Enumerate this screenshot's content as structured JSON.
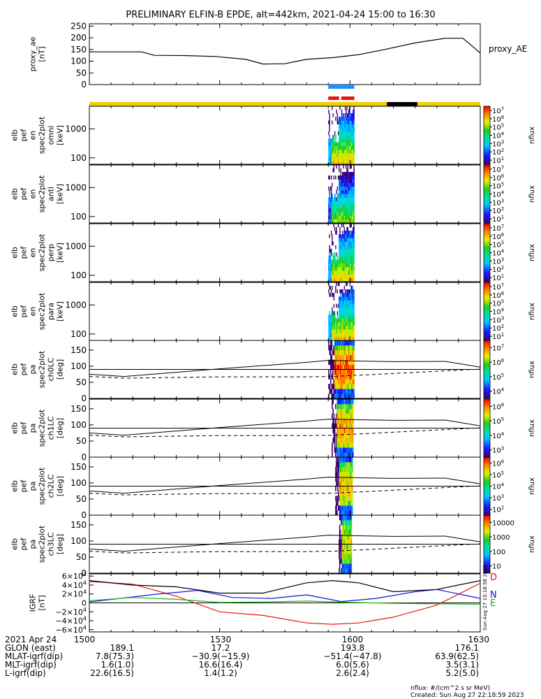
{
  "chart_data": {
    "type": "spectrogram",
    "title": "PRELIMINARY ELFIN-B EPDE, alt=442km, 2021-04-24 15:00 to 16:30",
    "x_axis": {
      "start": "15:00",
      "end": "16:30",
      "ticks": [
        "1500",
        "1530",
        "1600",
        "1630"
      ]
    },
    "proxy_ae": {
      "ylabel": [
        "proxy_ae",
        "[nT]"
      ],
      "yticks": [
        "0",
        "50",
        "100",
        "150",
        "200",
        "250"
      ],
      "ylim": [
        0,
        260
      ],
      "legend": "proxy_AE",
      "points": [
        [
          0,
          140
        ],
        [
          12,
          140
        ],
        [
          15,
          125
        ],
        [
          22,
          124
        ],
        [
          29,
          120
        ],
        [
          36,
          108
        ],
        [
          40,
          88
        ],
        [
          45,
          89
        ],
        [
          50,
          108
        ],
        [
          56,
          115
        ],
        [
          62,
          128
        ],
        [
          68,
          150
        ],
        [
          75,
          178
        ],
        [
          82,
          198
        ],
        [
          86,
          198
        ],
        [
          90,
          135
        ]
      ]
    },
    "status_bars": {
      "blue_segment": [
        55,
        61
      ],
      "red_segments": [
        [
          55,
          57.5
        ],
        [
          58,
          61
        ]
      ],
      "yellow_range": [
        0,
        90
      ],
      "black_segment": [
        68.5,
        75.5
      ]
    },
    "spectrogram_panels": [
      {
        "label": [
          "elb",
          "pef",
          "en",
          "spec2plot",
          "omni",
          "[keV]"
        ],
        "yticks": [
          "100",
          "1000"
        ],
        "cbar_ticks": [
          "10^1",
          "10^2",
          "10^3",
          "10^4",
          "10^5",
          "10^6",
          "10^7"
        ],
        "cbar_label": "nflux"
      },
      {
        "label": [
          "elb",
          "pef",
          "en",
          "spec2plot",
          "anti",
          "[keV]"
        ],
        "yticks": [
          "100",
          "1000"
        ],
        "cbar_ticks": [
          "10^1",
          "10^2",
          "10^3",
          "10^4",
          "10^5",
          "10^6",
          "10^7"
        ],
        "cbar_label": "nflux"
      },
      {
        "label": [
          "elb",
          "pef",
          "en",
          "spec2plot",
          "perp",
          "[keV]"
        ],
        "yticks": [
          "100",
          "1000"
        ],
        "cbar_ticks": [
          "10^1",
          "10^2",
          "10^3",
          "10^4",
          "10^5",
          "10^6",
          "10^7"
        ],
        "cbar_label": "nflux"
      },
      {
        "label": [
          "elb",
          "pef",
          "en",
          "spec2plot",
          "para",
          "[keV]"
        ],
        "yticks": [
          "100",
          "1000"
        ],
        "cbar_ticks": [
          "10^1",
          "10^2",
          "10^3",
          "10^4",
          "10^5",
          "10^6",
          "10^7"
        ],
        "cbar_label": "nflux"
      }
    ],
    "pitch_panels": [
      {
        "label": [
          "elb",
          "pef",
          "pa",
          "spec2plot",
          "ch0LC",
          "[deg]"
        ],
        "yticks": [
          "0",
          "50",
          "100",
          "150"
        ],
        "cbar_ticks": [
          "10^4",
          "10^5",
          "10^6",
          "10^7"
        ],
        "cbar_label": "nflux"
      },
      {
        "label": [
          "elb",
          "pef",
          "pa",
          "spec2plot",
          "ch1LC",
          "[deg]"
        ],
        "yticks": [
          "0",
          "50",
          "100",
          "150"
        ],
        "cbar_ticks": [
          "10^3",
          "10^4",
          "10^5",
          "10^6"
        ],
        "cbar_label": "nflux"
      },
      {
        "label": [
          "elb",
          "pef",
          "pa",
          "spec2plot",
          "ch2LC",
          "[deg]"
        ],
        "yticks": [
          "0",
          "50",
          "100",
          "150"
        ],
        "cbar_ticks": [
          "10^2",
          "10^3",
          "10^4",
          "10^5",
          "10^6"
        ],
        "cbar_label": "nflux"
      },
      {
        "label": [
          "elb",
          "pef",
          "pa",
          "spec2plot",
          "ch3LC",
          "[deg]"
        ],
        "yticks": [
          "0",
          "50",
          "100",
          "150"
        ],
        "cbar_ticks": [
          "10",
          "100",
          "1000",
          "10000"
        ],
        "cbar_label": "nflux"
      }
    ],
    "loss_cone": {
      "solid": [
        [
          0,
          75
        ],
        [
          8,
          68
        ],
        [
          30,
          92
        ],
        [
          50,
          112
        ],
        [
          55,
          118
        ],
        [
          70,
          114
        ],
        [
          82,
          115
        ],
        [
          90,
          97
        ]
      ],
      "dashed": [
        [
          0,
          68
        ],
        [
          8,
          63
        ],
        [
          30,
          67
        ],
        [
          50,
          67
        ],
        [
          56,
          68
        ],
        [
          65,
          74
        ],
        [
          90,
          91
        ]
      ]
    },
    "igrf": {
      "ylabel": [
        "IGRF",
        "[nT]"
      ],
      "yticks": [
        "6×10^4",
        "4×10^4",
        "2×10^4",
        "0",
        "−2×10^4",
        "−4×10^4",
        "−6×10^4"
      ],
      "ylim": [
        -65000,
        65000
      ],
      "series": [
        {
          "name": "D",
          "color": "#ee1111",
          "points": [
            [
              0,
              48000
            ],
            [
              10,
              42000
            ],
            [
              20,
              15000
            ],
            [
              30,
              -20000
            ],
            [
              40,
              -28000
            ],
            [
              50,
              -45000
            ],
            [
              56,
              -48000
            ],
            [
              62,
              -45000
            ],
            [
              70,
              -32000
            ],
            [
              80,
              -5000
            ],
            [
              90,
              44000
            ]
          ]
        },
        {
          "name": "N",
          "color": "#1111dd",
          "points": [
            [
              0,
              2000
            ],
            [
              15,
              19000
            ],
            [
              25,
              28000
            ],
            [
              33,
              12000
            ],
            [
              42,
              10000
            ],
            [
              50,
              18000
            ],
            [
              58,
              3000
            ],
            [
              66,
              10000
            ],
            [
              75,
              25000
            ],
            [
              80,
              30000
            ],
            [
              90,
              10000
            ]
          ]
        },
        {
          "name": "E",
          "color": "#11bb11",
          "points": [
            [
              0,
              5000
            ],
            [
              10,
              12000
            ],
            [
              20,
              8000
            ],
            [
              30,
              1000
            ],
            [
              40,
              2000
            ],
            [
              50,
              4000
            ],
            [
              60,
              1000
            ],
            [
              70,
              -1000
            ],
            [
              80,
              -2000
            ],
            [
              90,
              -3000
            ]
          ]
        },
        {
          "name": "",
          "color": "#000000",
          "points": [
            [
              0,
              50000
            ],
            [
              10,
              40000
            ],
            [
              20,
              36000
            ],
            [
              30,
              22000
            ],
            [
              40,
              22000
            ],
            [
              50,
              45000
            ],
            [
              56,
              50000
            ],
            [
              62,
              45000
            ],
            [
              70,
              25000
            ],
            [
              80,
              30000
            ],
            [
              90,
              50000
            ]
          ]
        }
      ],
      "side_stamp": "Sun Aug 27 15:18:58 2023"
    }
  },
  "footer": {
    "row_labels": [
      "2021 Apr 24",
      "GLON (east)",
      "MLAT-igrf(dip)",
      "MLT-igrf(dip)",
      "L-igrf(dip)"
    ],
    "columns": [
      {
        "time": "1500",
        "values": [
          "189.1",
          "7.8(75.3)",
          "1.6(1.0)",
          "22.6(16.5)"
        ]
      },
      {
        "time": "1530",
        "values": [
          "17.2",
          "−30.9(−15.9)",
          "16.6(16.4)",
          "1.4(1.2)"
        ]
      },
      {
        "time": "1600",
        "values": [
          "193.8",
          "−51.4(−47.8)",
          "6.0(5.6)",
          "2.6(2.4)"
        ]
      },
      {
        "time": "1630",
        "values": [
          "176.1",
          "63.9(62.5)",
          "3.5(3.1)",
          "5.2(5.0)"
        ]
      }
    ],
    "units_note": "nflux: #/(cm^2 s sr MeV)",
    "created": "Created: Sun Aug 27 22:18:59 2023"
  }
}
